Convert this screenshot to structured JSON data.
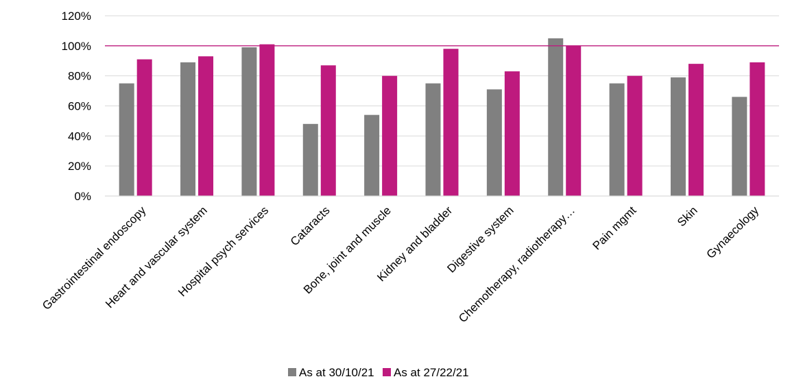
{
  "chart_data": {
    "type": "bar",
    "categories": [
      "Gastrointestinal endoscopy",
      "Heart and vascular system",
      "Hospital psych services",
      "Cataracts",
      "Bone, joint and muscle",
      "Kidney and bladder",
      "Digestive system",
      "Chemotherapy, radiotherapy…",
      "Pain mgmt",
      "Skin",
      "Gynaecology"
    ],
    "series": [
      {
        "name": "As at 30/10/21",
        "color": "#808080",
        "values": [
          75,
          89,
          99,
          48,
          54,
          75,
          71,
          105,
          75,
          79,
          66
        ]
      },
      {
        "name": "As at 27/22/21",
        "color": "#be1a7e",
        "values": [
          91,
          93,
          101,
          87,
          80,
          98,
          83,
          100,
          80,
          88,
          89
        ]
      }
    ],
    "ylim": [
      0,
      120
    ],
    "yticks": [
      "0%",
      "20%",
      "40%",
      "60%",
      "80%",
      "100%",
      "120%"
    ],
    "reference_line": {
      "value": 100,
      "color": "#be1a7e"
    },
    "grid": true,
    "legend_position": "bottom",
    "title": "",
    "xlabel": "",
    "ylabel": ""
  }
}
